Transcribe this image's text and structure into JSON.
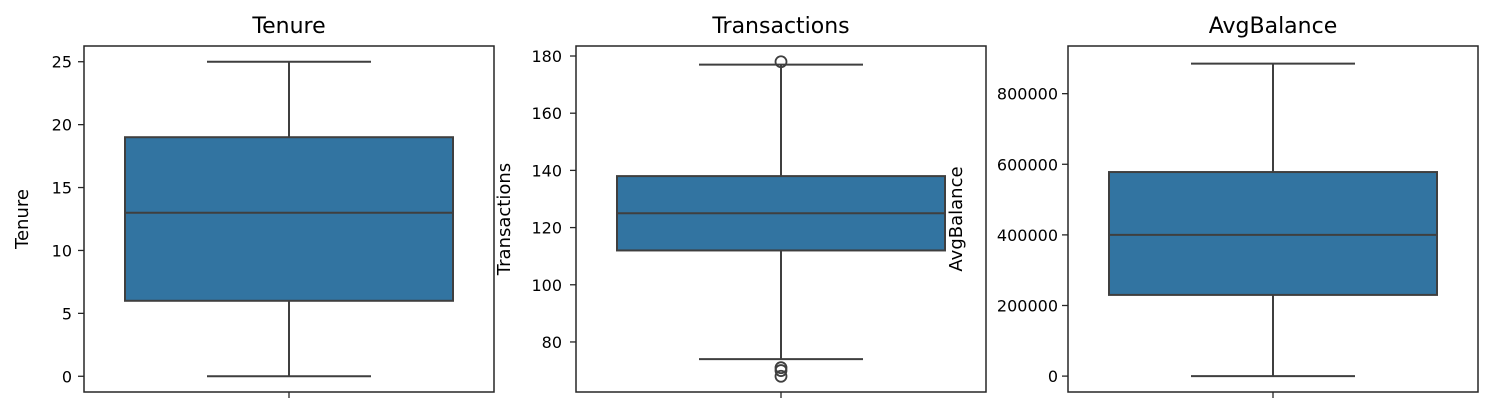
{
  "chart_data": [
    {
      "type": "box",
      "title": "Tenure",
      "ylabel": "Tenure",
      "ylim": [
        -1.25,
        26.25
      ],
      "yticks": [
        0,
        5,
        10,
        15,
        20,
        25
      ],
      "box": {
        "min": 0,
        "q1": 6,
        "median": 13,
        "q3": 19,
        "max": 25
      },
      "outliers": []
    },
    {
      "type": "box",
      "title": "Transactions",
      "ylabel": "Transactions",
      "ylim": [
        62.5,
        183.5
      ],
      "yticks": [
        80,
        100,
        120,
        140,
        160,
        180
      ],
      "box": {
        "min": 74,
        "q1": 112,
        "median": 125,
        "q3": 138,
        "max": 177
      },
      "outliers": [
        178,
        71,
        70,
        68
      ]
    },
    {
      "type": "box",
      "title": "AvgBalance",
      "ylabel": "AvgBalance",
      "ylim": [
        -45000,
        935000
      ],
      "yticks": [
        0,
        200000,
        400000,
        600000,
        800000
      ],
      "box": {
        "min": 0,
        "q1": 230000,
        "median": 400000,
        "q3": 578000,
        "max": 885000
      },
      "outliers": []
    }
  ]
}
